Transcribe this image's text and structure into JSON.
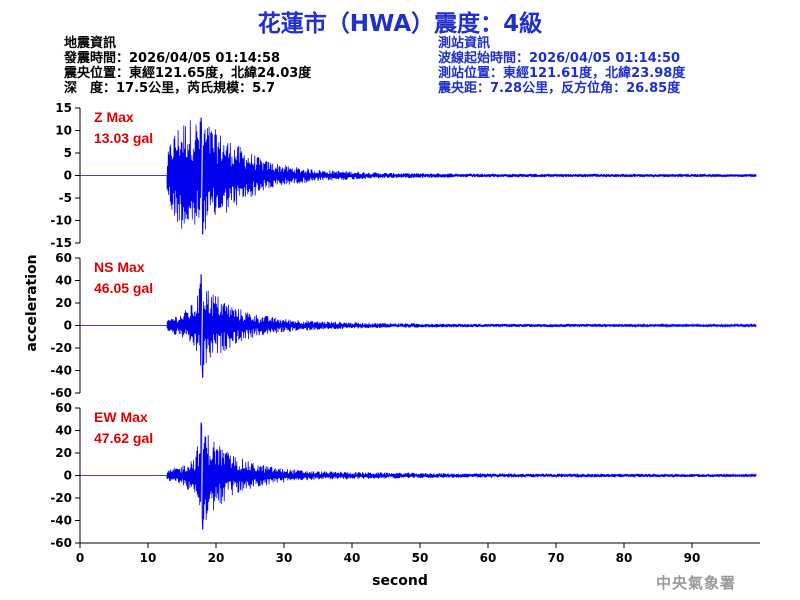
{
  "header": {
    "title": "花蓮市（HWA）震度：4級",
    "quake_info": [
      "地震資訊",
      "發震時間：2026/04/05 01:14:58",
      "震央位置：東經121.65度，北緯24.03度",
      "深　度：17.5公里，芮氏規模：5.7"
    ],
    "station_info": [
      "測站資訊",
      "波線起始時間：2026/04/05 01:14:50",
      "測站位置：東經121.61度，北緯23.98度",
      "震央距：7.28公里，反方位角：26.85度"
    ]
  },
  "footer": {
    "agency": "中央氣象署"
  },
  "colors": {
    "title": "#1f2fd0",
    "trace": "#0000ee",
    "label": "#e00000",
    "info_right": "#1f2fd0"
  },
  "chart_data": {
    "type": "line",
    "xlabel": "second",
    "ylabel": "acceleration",
    "xlim": [
      0,
      100
    ],
    "xticks": [
      0,
      10,
      20,
      30,
      40,
      50,
      60,
      70,
      80,
      90
    ],
    "grid": false,
    "panels": [
      {
        "name": "Z Max",
        "max_label": "13.03 gal",
        "max_value": 13.03,
        "ylim": [
          -15,
          15
        ],
        "yticks": [
          -15,
          -10,
          -5,
          0,
          5,
          10,
          15
        ],
        "onset": 12.8,
        "envelope": [
          [
            12.8,
            4
          ],
          [
            13.5,
            9
          ],
          [
            14.8,
            12
          ],
          [
            16.5,
            13
          ],
          [
            18.5,
            12
          ],
          [
            21,
            9
          ],
          [
            24,
            6
          ],
          [
            27,
            3.5
          ],
          [
            31,
            2
          ],
          [
            36,
            1.2
          ],
          [
            45,
            0.6
          ],
          [
            60,
            0.4
          ],
          [
            100,
            0.3
          ]
        ]
      },
      {
        "name": "NS Max",
        "max_label": "46.05 gal",
        "max_value": 46.05,
        "ylim": [
          -60,
          60
        ],
        "yticks": [
          -60,
          -40,
          -20,
          0,
          20,
          40,
          60
        ],
        "onset": 12.8,
        "envelope": [
          [
            12.8,
            4
          ],
          [
            13.5,
            8
          ],
          [
            15,
            11
          ],
          [
            17,
            22
          ],
          [
            18,
            46
          ],
          [
            19,
            32
          ],
          [
            21,
            24
          ],
          [
            23,
            16
          ],
          [
            26,
            10
          ],
          [
            30,
            6
          ],
          [
            35,
            4
          ],
          [
            42,
            2.5
          ],
          [
            55,
            1.5
          ],
          [
            100,
            1
          ]
        ]
      },
      {
        "name": "EW Max",
        "max_label": "47.62 gal",
        "max_value": 47.62,
        "ylim": [
          -60,
          60
        ],
        "yticks": [
          -60,
          -40,
          -20,
          0,
          20,
          40,
          60
        ],
        "onset": 12.8,
        "envelope": [
          [
            12.8,
            4
          ],
          [
            13.5,
            6
          ],
          [
            15,
            9
          ],
          [
            17,
            18
          ],
          [
            18,
            48
          ],
          [
            19,
            36
          ],
          [
            20.5,
            28
          ],
          [
            22,
            20
          ],
          [
            25,
            12
          ],
          [
            29,
            7
          ],
          [
            34,
            4
          ],
          [
            42,
            3
          ],
          [
            55,
            2
          ],
          [
            100,
            1.2
          ]
        ]
      }
    ]
  }
}
